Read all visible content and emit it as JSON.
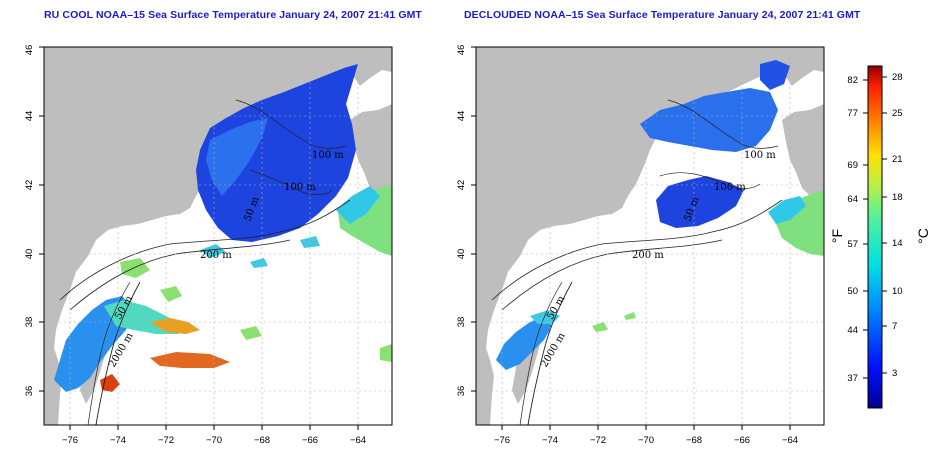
{
  "titles": {
    "left": "RU COOL NOAA–15 Sea Surface Temperature January 24, 2007 21:41 GMT",
    "right": "DECLOUDED NOAA–15 Sea Surface Temperature January 24, 2007 21:41 GMT"
  },
  "axes": {
    "x_ticks": [
      "−76",
      "−74",
      "−72",
      "−70",
      "−68",
      "−66",
      "−64"
    ],
    "y_ticks": [
      "36",
      "38",
      "40",
      "42",
      "44",
      "46"
    ]
  },
  "contour_labels": {
    "left": [
      "100 m",
      "100 m",
      "50 m",
      "200 m",
      "50 m",
      "2000 m"
    ],
    "right": [
      "100 m",
      "100 m",
      "50 m",
      "200 m",
      "50 m",
      "2000 m"
    ]
  },
  "colorbar": {
    "fahrenheit_ticks": [
      "82",
      "77",
      "69",
      "64",
      "57",
      "50",
      "44",
      "37"
    ],
    "celsius_ticks": [
      "28",
      "25",
      "21",
      "18",
      "14",
      "10",
      "7",
      "3"
    ],
    "unit_f": "°F",
    "unit_c": "°C"
  },
  "colors": {
    "title": "#1a1acc",
    "land": "#bebebe",
    "cold": "#1a3fd8",
    "warm": "#e04010"
  }
}
